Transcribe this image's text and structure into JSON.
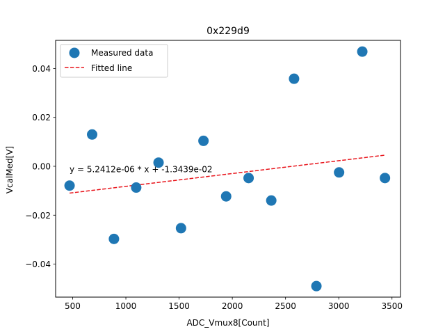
{
  "chart_data": {
    "type": "scatter",
    "title": "0x229d9",
    "xlabel": "ADC_Vmux8[Count]",
    "ylabel": "VcalMed[V]",
    "xlim": [
      340,
      3580
    ],
    "ylim": [
      -0.0535,
      0.0515
    ],
    "xticks": [
      500,
      1000,
      1500,
      2000,
      2500,
      3000,
      3500
    ],
    "yticks": [
      -0.04,
      -0.02,
      0.0,
      0.02,
      0.04
    ],
    "xtick_labels": [
      "500",
      "1000",
      "1500",
      "2000",
      "2500",
      "3000",
      "3500"
    ],
    "ytick_labels": [
      "−0.04",
      "−0.02",
      "0.00",
      "0.02",
      "0.04"
    ],
    "legend_position": "top-left",
    "series": [
      {
        "name": "Measured data",
        "kind": "scatter",
        "color": "#1f77b4",
        "x": [
          471,
          683,
          888,
          1097,
          1307,
          1518,
          1729,
          1942,
          2153,
          2366,
          2580,
          2790,
          3003,
          3221,
          3434
        ],
        "y": [
          -0.0079,
          0.013,
          -0.0297,
          -0.0087,
          0.0015,
          -0.0253,
          0.0104,
          -0.0123,
          -0.0048,
          -0.014,
          0.0358,
          -0.049,
          -0.0025,
          0.0469,
          -0.0048
        ]
      },
      {
        "name": "Fitted line",
        "kind": "line",
        "style": "dashed",
        "color": "#e8141b",
        "slope": 5.2412e-06,
        "intercept": -0.013439,
        "x": [
          471,
          3434
        ]
      }
    ],
    "annotation": "y = 5.2412e-06 * x + -1.3439e-02",
    "annotation_anchor": {
      "x": 471,
      "y": -0.0024
    }
  }
}
